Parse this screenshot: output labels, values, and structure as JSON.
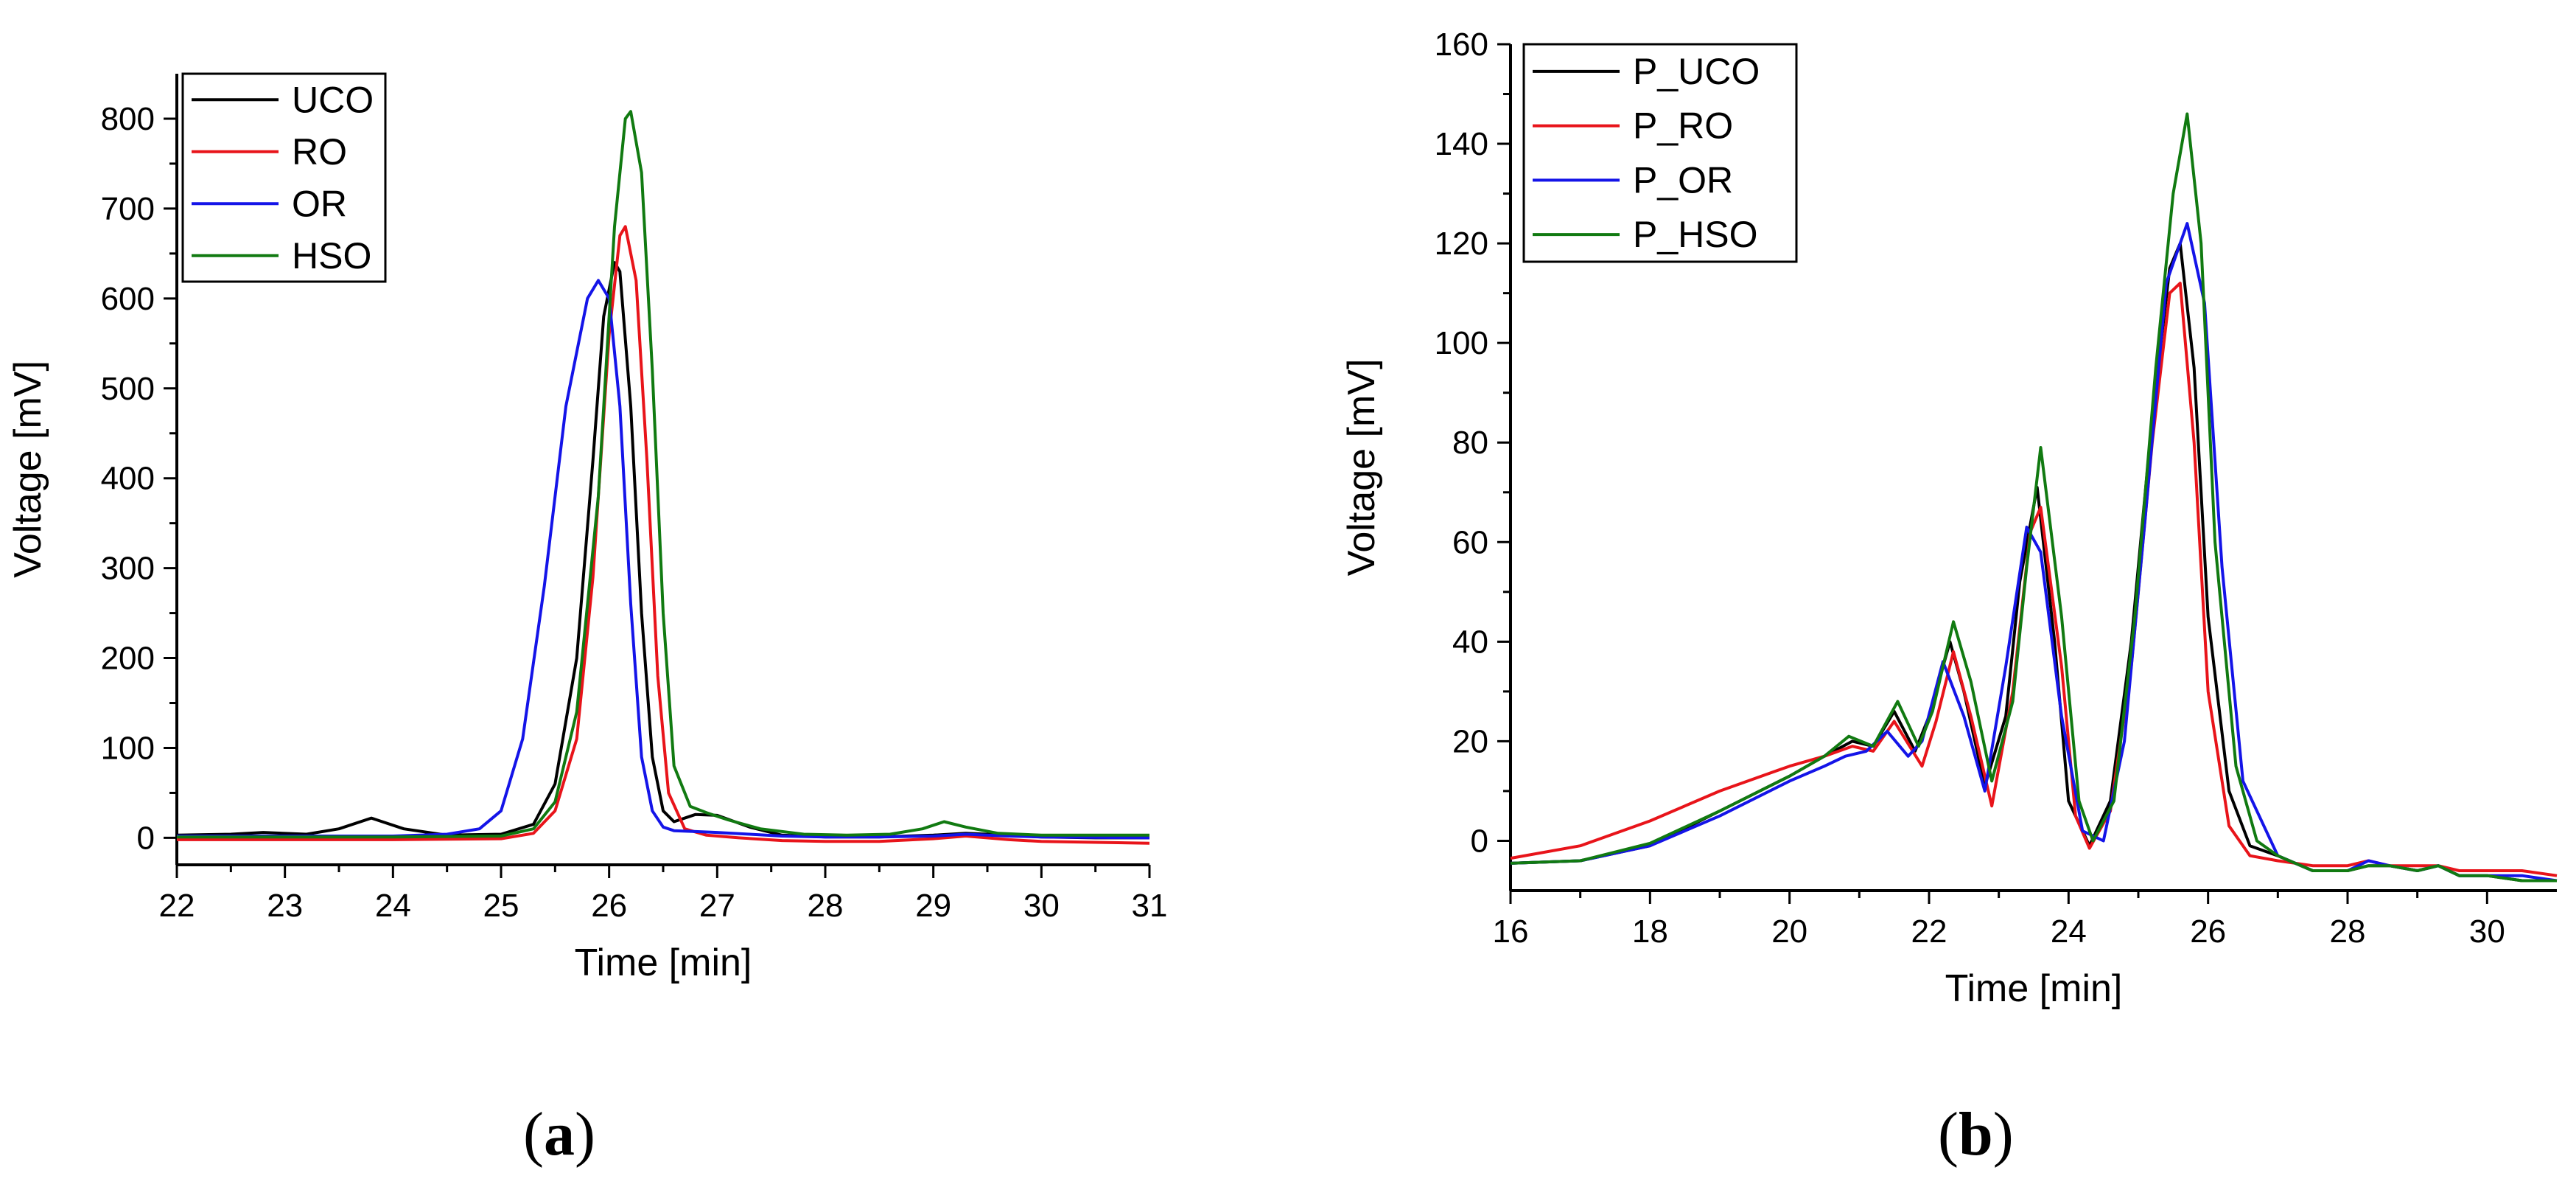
{
  "chart_data": [
    {
      "type": "line",
      "panel_label": "a",
      "xlabel": "Time [min]",
      "ylabel": "Voltage [mV]",
      "xlim": [
        22,
        31
      ],
      "ylim": [
        -30,
        850
      ],
      "xticks": [
        22,
        23,
        24,
        25,
        26,
        27,
        28,
        29,
        30,
        31
      ],
      "yticks": [
        0,
        100,
        200,
        300,
        400,
        500,
        600,
        700,
        800
      ],
      "legend_position": "top-left",
      "series": [
        {
          "name": "UCO",
          "color": "#000000",
          "x": [
            22,
            22.5,
            22.8,
            23.2,
            23.5,
            23.8,
            24.1,
            24.5,
            25,
            25.3,
            25.5,
            25.7,
            25.85,
            25.95,
            26.05,
            26.1,
            26.2,
            26.3,
            26.4,
            26.5,
            26.6,
            26.8,
            27,
            27.3,
            27.6,
            28,
            28.5,
            29,
            29.3,
            29.7,
            30,
            30.5,
            31
          ],
          "y": [
            3,
            4,
            6,
            4,
            10,
            22,
            10,
            3,
            4,
            15,
            60,
            200,
            420,
            580,
            640,
            630,
            480,
            250,
            90,
            30,
            18,
            26,
            25,
            12,
            3,
            1,
            1,
            3,
            5,
            3,
            1,
            0,
            0
          ]
        },
        {
          "name": "RO",
          "color": "#e8141a",
          "x": [
            22,
            23,
            24,
            25,
            25.3,
            25.5,
            25.7,
            25.85,
            26,
            26.1,
            26.15,
            26.25,
            26.35,
            26.45,
            26.55,
            26.7,
            26.9,
            27.2,
            27.6,
            28,
            28.5,
            29,
            29.3,
            29.7,
            30,
            30.5,
            31
          ],
          "y": [
            -2,
            -2,
            -2,
            -1,
            5,
            30,
            110,
            290,
            560,
            670,
            680,
            620,
            420,
            180,
            50,
            10,
            3,
            0,
            -3,
            -4,
            -4,
            -1,
            2,
            -2,
            -4,
            -5,
            -6
          ]
        },
        {
          "name": "OR",
          "color": "#1414e8",
          "x": [
            22,
            23,
            24,
            24.5,
            24.8,
            25,
            25.2,
            25.4,
            25.6,
            25.8,
            25.9,
            26,
            26.1,
            26.2,
            26.3,
            26.4,
            26.5,
            26.6,
            26.8,
            27,
            27.3,
            27.6,
            28,
            28.5,
            29,
            29.3,
            29.7,
            30,
            31
          ],
          "y": [
            2,
            2,
            2,
            4,
            10,
            30,
            110,
            280,
            480,
            600,
            620,
            600,
            480,
            260,
            90,
            30,
            12,
            8,
            7,
            6,
            4,
            2,
            1,
            1,
            2,
            4,
            2,
            1,
            0
          ]
        },
        {
          "name": "HSO",
          "color": "#117a11",
          "x": [
            22,
            23,
            24,
            25,
            25.3,
            25.5,
            25.7,
            25.9,
            26.05,
            26.15,
            26.2,
            26.3,
            26.4,
            26.5,
            26.6,
            26.75,
            26.9,
            27.1,
            27.4,
            27.8,
            28.2,
            28.6,
            28.9,
            29.1,
            29.3,
            29.6,
            30,
            30.5,
            31
          ],
          "y": [
            1,
            1,
            1,
            2,
            10,
            40,
            140,
            380,
            680,
            800,
            808,
            740,
            520,
            250,
            80,
            35,
            28,
            20,
            10,
            4,
            3,
            4,
            10,
            18,
            12,
            5,
            3,
            3,
            3
          ]
        }
      ]
    },
    {
      "type": "line",
      "panel_label": "b",
      "xlabel": "Time [min]",
      "ylabel": "Voltage [mV]",
      "xlim": [
        16,
        31
      ],
      "ylim": [
        -10,
        160
      ],
      "xticks": [
        16,
        18,
        20,
        22,
        24,
        26,
        28,
        30
      ],
      "yticks": [
        0,
        20,
        40,
        60,
        80,
        100,
        120,
        140,
        160
      ],
      "legend_position": "top-left",
      "series": [
        {
          "name": "P_UCO",
          "color": "#000000",
          "x": [
            16,
            17,
            18,
            19,
            20,
            20.5,
            20.9,
            21.2,
            21.5,
            21.8,
            22,
            22.3,
            22.5,
            22.8,
            23.1,
            23.3,
            23.55,
            23.8,
            24,
            24.3,
            24.6,
            24.9,
            25.2,
            25.45,
            25.6,
            25.8,
            26,
            26.3,
            26.6,
            27,
            27.5,
            28,
            28.3,
            28.6,
            29,
            29.3,
            29.6,
            30,
            30.5,
            31
          ],
          "y": [
            -4.5,
            -4,
            -1,
            6,
            13,
            17,
            20,
            19,
            26,
            18,
            25,
            40,
            30,
            11,
            25,
            52,
            71,
            40,
            8,
            -1,
            8,
            40,
            85,
            115,
            120,
            95,
            45,
            10,
            -1,
            -3,
            -6,
            -6,
            -5,
            -5,
            -6,
            -5,
            -7,
            -7,
            -8,
            -8
          ]
        },
        {
          "name": "P_RO",
          "color": "#e8141a",
          "x": [
            16,
            17,
            18,
            19,
            20,
            20.5,
            20.9,
            21.2,
            21.5,
            21.9,
            22.1,
            22.35,
            22.6,
            22.9,
            23.2,
            23.45,
            23.6,
            23.9,
            24.1,
            24.3,
            24.6,
            24.9,
            25.2,
            25.45,
            25.6,
            25.8,
            26,
            26.3,
            26.6,
            27,
            27.5,
            28,
            28.3,
            28.6,
            29,
            29.3,
            29.6,
            30,
            30.5,
            31
          ],
          "y": [
            -3.5,
            -1,
            4,
            10,
            15,
            17,
            19,
            18,
            24,
            15,
            24,
            38,
            25,
            7,
            30,
            62,
            67,
            35,
            5,
            -1.5,
            6,
            35,
            80,
            110,
            112,
            80,
            30,
            3,
            -3,
            -4,
            -5,
            -5,
            -4,
            -5,
            -5,
            -5,
            -6,
            -6,
            -6,
            -7
          ]
        },
        {
          "name": "P_OR",
          "color": "#1414e8",
          "x": [
            16,
            17,
            18,
            19,
            20,
            20.5,
            20.8,
            21.1,
            21.4,
            21.7,
            21.9,
            22.2,
            22.5,
            22.8,
            23.1,
            23.4,
            23.6,
            23.9,
            24.2,
            24.5,
            24.8,
            25.1,
            25.4,
            25.7,
            25.95,
            26.2,
            26.5,
            27,
            27.5,
            28,
            28.3,
            28.6,
            29,
            29.3,
            29.6,
            30,
            30.5,
            31
          ],
          "y": [
            -4.5,
            -4,
            -1,
            5,
            12,
            15,
            17,
            18,
            22,
            17,
            20,
            36,
            25,
            10,
            35,
            63,
            58,
            25,
            2,
            0,
            20,
            65,
            112,
            124,
            108,
            55,
            12,
            -3,
            -6,
            -6,
            -4,
            -5,
            -6,
            -5,
            -7,
            -7,
            -7,
            -8
          ]
        },
        {
          "name": "P_HSO",
          "color": "#117a11",
          "x": [
            16,
            17,
            18,
            19,
            20,
            20.5,
            20.85,
            21.2,
            21.55,
            21.85,
            22.05,
            22.35,
            22.6,
            22.9,
            23.2,
            23.4,
            23.6,
            23.9,
            24.15,
            24.35,
            24.65,
            24.95,
            25.25,
            25.5,
            25.7,
            25.9,
            26.1,
            26.4,
            26.7,
            27,
            27.5,
            28,
            28.3,
            28.6,
            29,
            29.3,
            29.6,
            30,
            30.5,
            31
          ],
          "y": [
            -4.5,
            -4,
            -0.5,
            6,
            13,
            17,
            21,
            19,
            28,
            19,
            26,
            44,
            32,
            12,
            28,
            55,
            79,
            45,
            8,
            0,
            8,
            45,
            95,
            130,
            146,
            120,
            60,
            15,
            0,
            -3,
            -6,
            -6,
            -5,
            -5,
            -6,
            -5,
            -7,
            -7,
            -8,
            -8
          ]
        }
      ]
    }
  ]
}
